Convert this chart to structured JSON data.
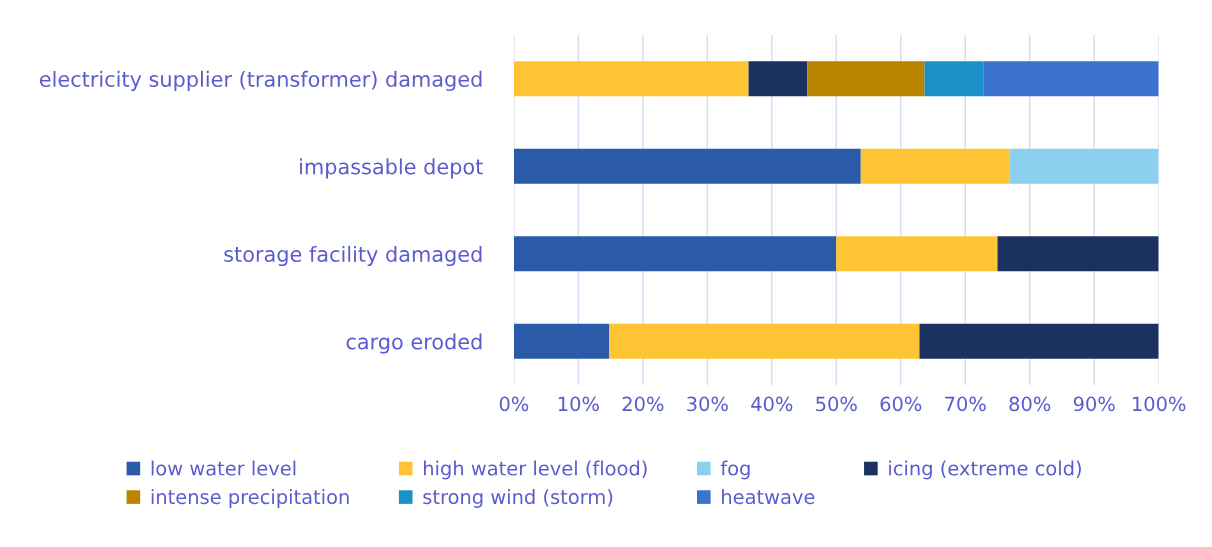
{
  "chart_data": {
    "type": "bar",
    "orientation": "horizontal",
    "stacked": true,
    "categories": [
      "electricity supplier (transformer) damaged",
      "impassable depot",
      "storage facility damaged",
      "cargo eroded"
    ],
    "series": [
      {
        "name": "low water level",
        "color": "#2b5ba8",
        "values": [
          null,
          53.8,
          50,
          14.8
        ]
      },
      {
        "name": "high water level (flood)",
        "color": "#ffc433",
        "values": [
          36.4,
          23.1,
          25,
          48.1
        ]
      },
      {
        "name": "fog",
        "color": "#8ccfee",
        "values": [
          null,
          23.1,
          null,
          null
        ]
      },
      {
        "name": "icing (extreme cold)",
        "color": "#1b3261",
        "values": [
          9.1,
          null,
          25,
          37.1
        ]
      },
      {
        "name": "intense precipitation",
        "color": "#bb8400",
        "values": [
          18.2,
          null,
          null,
          null
        ]
      },
      {
        "name": "strong wind (storm)",
        "color": "#1a8fc8",
        "values": [
          9.1,
          null,
          null,
          null
        ]
      },
      {
        "name": "heatwave",
        "color": "#3c72cf",
        "values": [
          27.2,
          null,
          null,
          null
        ]
      }
    ],
    "xlim": [
      0,
      100
    ],
    "xticks": [
      {
        "value": 0,
        "label": "0%"
      },
      {
        "value": 10,
        "label": "10%"
      },
      {
        "value": 20,
        "label": "20%"
      },
      {
        "value": 30,
        "label": "30%"
      },
      {
        "value": 40,
        "label": "40%"
      },
      {
        "value": 50,
        "label": "50%"
      },
      {
        "value": 60,
        "label": "60%"
      },
      {
        "value": 70,
        "label": "70%"
      },
      {
        "value": 80,
        "label": "80%"
      },
      {
        "value": 90,
        "label": "90%"
      },
      {
        "value": 100,
        "label": "100%"
      }
    ],
    "grid": "x",
    "legend": "bottom"
  }
}
